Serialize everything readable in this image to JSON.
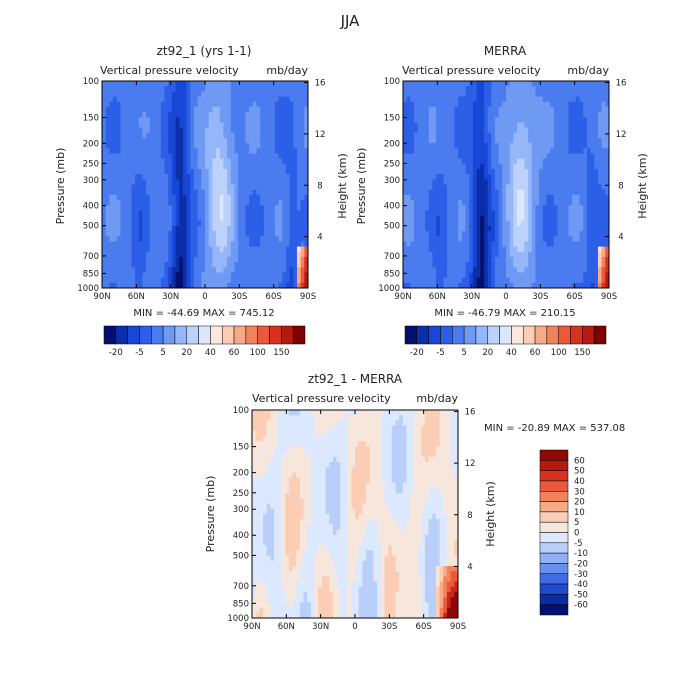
{
  "figure": {
    "title": "JJA",
    "colors": {
      "positive_max": "#7f0000",
      "negative_max": "#000a80",
      "neutral": "#f7e6dc",
      "axis": "#000000"
    }
  },
  "chart_data": [
    {
      "type": "heatmap",
      "title": "zt92_1 (yrs 1-1)",
      "subtitle_left": "Vertical pressure velocity",
      "subtitle_right": "mb/day",
      "ylabel": "Pressure (mb)",
      "ylabel_right": "Height (km)",
      "x_ticks": [
        "90N",
        "60N",
        "30N",
        "0",
        "30S",
        "60S",
        "90S"
      ],
      "y_ticks": [
        "100",
        "150",
        "200",
        "250",
        "300",
        "400",
        "500",
        "700",
        "850",
        "1000"
      ],
      "y_right_ticks": [
        "16",
        "12",
        "8",
        "4"
      ],
      "stats": "MIN = -44.69   MAX = 745.12",
      "min": -44.69,
      "max": 745.12,
      "colorbar_labels": [
        "-20",
        "-5",
        "5",
        "20",
        "40",
        "60",
        "100",
        "150"
      ]
    },
    {
      "type": "heatmap",
      "title": "MERRA",
      "subtitle_left": "Vertical pressure velocity",
      "subtitle_right": "mb/day",
      "ylabel": "Pressure (mb)",
      "ylabel_right": "Height (km)",
      "x_ticks": [
        "90N",
        "60N",
        "30N",
        "0",
        "30S",
        "60S",
        "90S"
      ],
      "y_ticks": [
        "100",
        "150",
        "200",
        "250",
        "300",
        "400",
        "500",
        "700",
        "850",
        "1000"
      ],
      "y_right_ticks": [
        "16",
        "12",
        "8",
        "4"
      ],
      "stats": "MIN = -46.79   MAX = 210.15",
      "min": -46.79,
      "max": 210.15,
      "colorbar_labels": [
        "-20",
        "-5",
        "5",
        "20",
        "40",
        "60",
        "100",
        "150"
      ]
    },
    {
      "type": "heatmap",
      "title": "zt92_1 - MERRA",
      "subtitle_left": "Vertical pressure velocity",
      "subtitle_right": "mb/day",
      "ylabel": "Pressure (mb)",
      "ylabel_right": "Height (km)",
      "x_ticks": [
        "90N",
        "60N",
        "30N",
        "0",
        "30S",
        "60S",
        "90S"
      ],
      "y_ticks": [
        "100",
        "150",
        "200",
        "250",
        "300",
        "400",
        "500",
        "700",
        "850",
        "1000"
      ],
      "y_right_ticks": [
        "16",
        "12",
        "8",
        "4"
      ],
      "stats": "MIN = -20.89   MAX = 537.08",
      "min": -20.89,
      "max": 537.08,
      "colorbar_labels": [
        "60",
        "50",
        "40",
        "30",
        "20",
        "10",
        "5",
        "0",
        "-5",
        "-10",
        "-20",
        "-30",
        "-40",
        "-50",
        "-60"
      ]
    }
  ]
}
